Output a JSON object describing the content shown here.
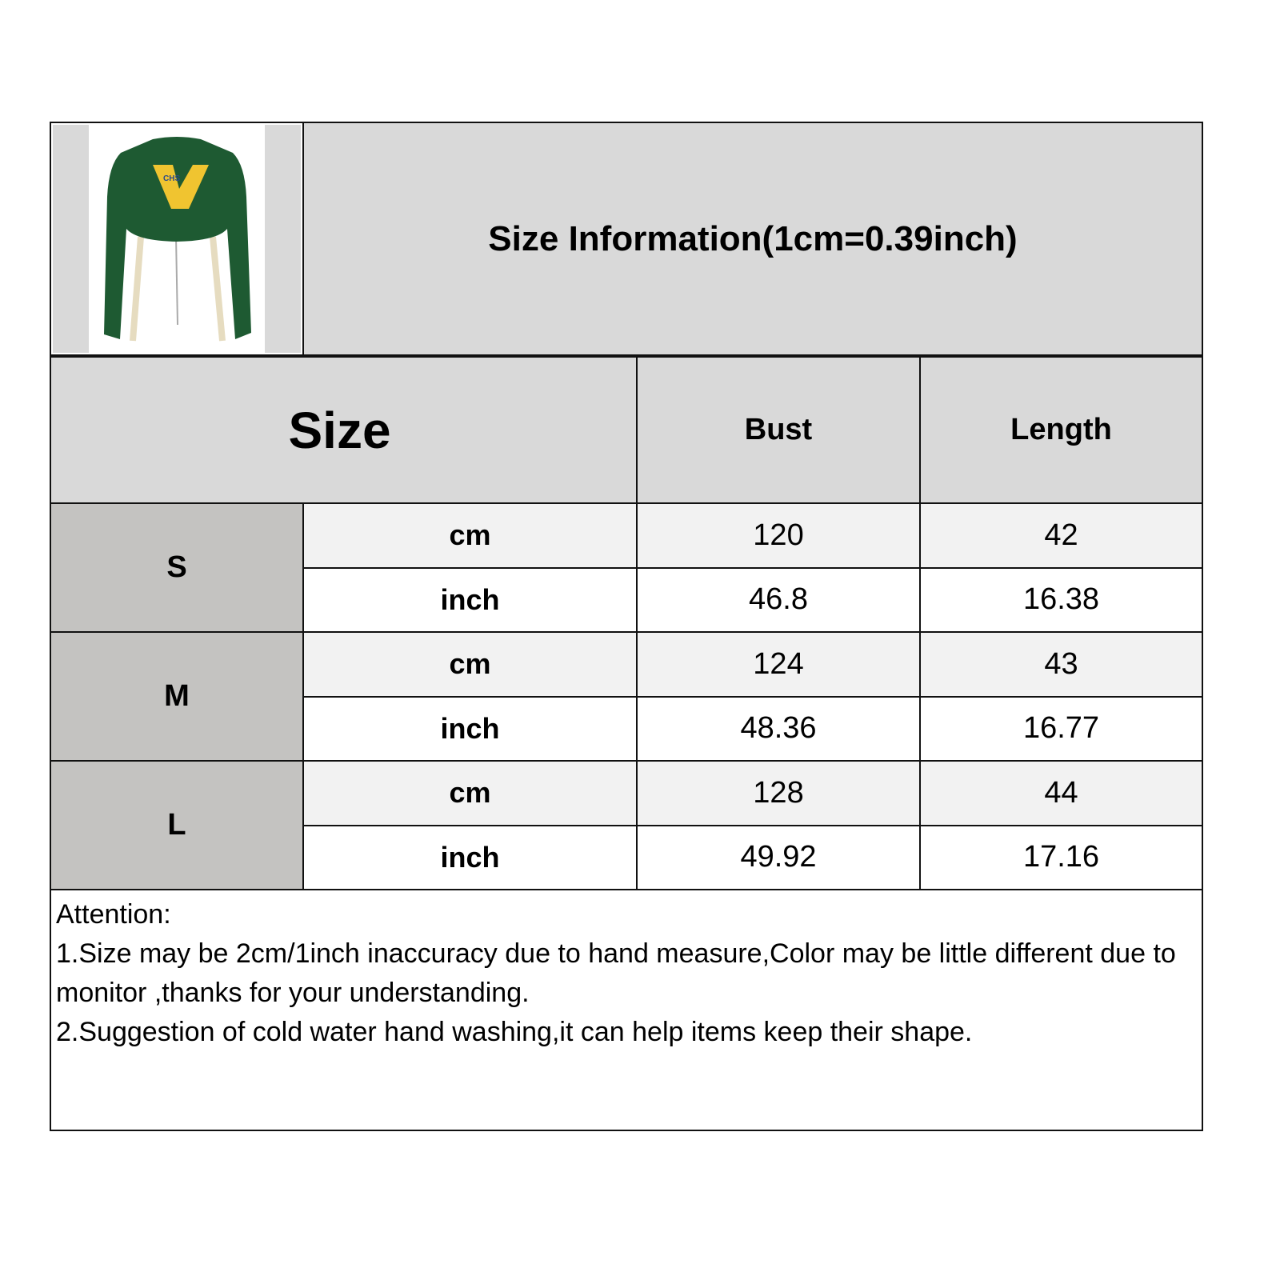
{
  "title": "Size Information(1cm=0.39inch)",
  "product_image": {
    "description_icon": "green-cropped-sweatshirt-image",
    "logo_text": "VCHS",
    "colors": {
      "body": "#1e5a32",
      "patch": "#f0c430"
    }
  },
  "headers": {
    "size": "Size",
    "bust": "Bust",
    "length": "Length"
  },
  "rows": [
    {
      "size": "S",
      "cm": {
        "unit": "cm",
        "bust": "120",
        "length": "42"
      },
      "inch": {
        "unit": "inch",
        "bust": "46.8",
        "length": "16.38"
      }
    },
    {
      "size": "M",
      "cm": {
        "unit": "cm",
        "bust": "124",
        "length": "43"
      },
      "inch": {
        "unit": "inch",
        "bust": "48.36",
        "length": "16.77"
      }
    },
    {
      "size": "L",
      "cm": {
        "unit": "cm",
        "bust": "128",
        "length": "44"
      },
      "inch": {
        "unit": "inch",
        "bust": "49.92",
        "length": "17.16"
      }
    }
  ],
  "notes": {
    "heading": "Attention:",
    "lines": [
      "1.Size may be 2cm/1inch inaccuracy due to hand measure,Color may be little different due to monitor ,thanks for your understanding.",
      "2.Suggestion of cold water hand washing,it can help items keep their shape."
    ]
  },
  "colors": {
    "header_bg": "#d9d9d9",
    "size_bg": "#c4c3c1",
    "cm_row_bg": "#f2f2f2",
    "inch_row_bg": "#ffffff"
  }
}
